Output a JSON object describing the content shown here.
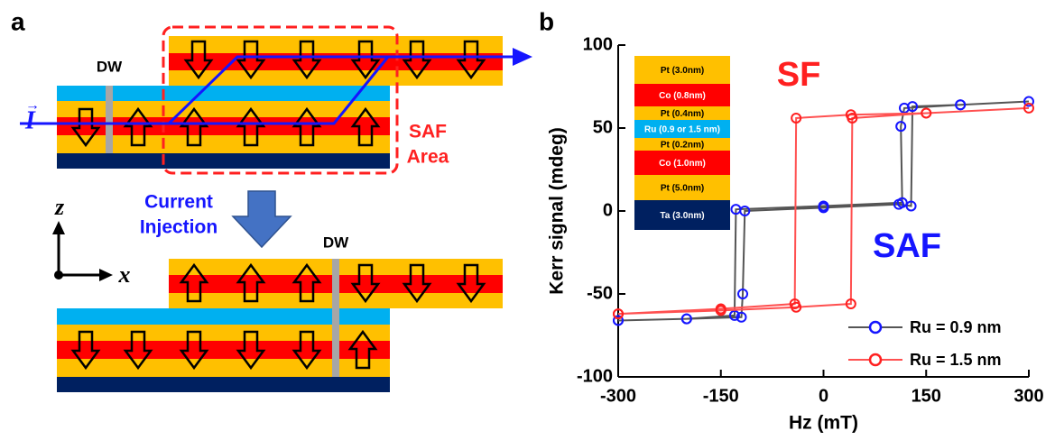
{
  "panel_a": {
    "label": "a",
    "dw_top": "DW",
    "dw_bottom": "DW",
    "current_symbol": "I",
    "current_arrow": "→",
    "saf_area": [
      "SAF",
      "Area"
    ],
    "current_injection": [
      "Current",
      "Injection"
    ],
    "axis_z": "z",
    "axis_x": "x"
  },
  "panel_b": {
    "label": "b"
  },
  "chart_data": {
    "type": "line",
    "xlabel": "Hz (mT)",
    "ylabel": "Kerr signal (mdeg)",
    "xlim": [
      -300,
      300
    ],
    "xticks": [
      -300,
      -150,
      0,
      150,
      300
    ],
    "ylim": [
      -100,
      100
    ],
    "yticks": [
      -100,
      -50,
      0,
      50,
      100
    ],
    "legend": "lower right",
    "series": [
      {
        "name": "Ru = 0.9 nm",
        "color": "#1515ff",
        "line_color": "#555555",
        "x": [
          -300,
          -200,
          -120,
          -118,
          -115,
          0,
          110,
          128,
          130,
          200,
          300,
          200,
          118,
          113,
          115,
          0,
          -128,
          -130,
          -200,
          -300
        ],
        "values": [
          -66,
          -65,
          -64,
          -50,
          0,
          2,
          4,
          3,
          63,
          64,
          66,
          64,
          62,
          51,
          5,
          3,
          1,
          -63,
          -65,
          -66
        ]
      },
      {
        "name": "Ru = 1.5 nm",
        "color": "#ff2020",
        "line_color": "#ff5050",
        "x": [
          -300,
          -150,
          -40,
          40,
          42,
          150,
          300,
          150,
          40,
          -40,
          -42,
          -150,
          -300
        ],
        "values": [
          -62,
          -60,
          -58,
          -56,
          56,
          59,
          62,
          59,
          58,
          56,
          -56,
          -59,
          -62
        ]
      }
    ],
    "annotations": [
      {
        "text": "SF",
        "color": "#ff2020"
      },
      {
        "text": "SAF",
        "color": "#1515ff"
      }
    ],
    "inset": [
      {
        "label": "Pt (3.0nm)",
        "color": "#FFC000"
      },
      {
        "label": "Co (0.8nm)",
        "color": "#FF0000"
      },
      {
        "label": "Pt (0.4nm)",
        "color": "#FFC000"
      },
      {
        "label": "Ru (0.9 or 1.5 nm)",
        "color": "#00B0F0"
      },
      {
        "label": "Pt (0.2nm)",
        "color": "#FFC000"
      },
      {
        "label": "Co (1.0nm)",
        "color": "#FF0000"
      },
      {
        "label": "Pt (5.0nm)",
        "color": "#FFC000"
      },
      {
        "label": "Ta (3.0nm)",
        "color": "#002060"
      }
    ]
  }
}
